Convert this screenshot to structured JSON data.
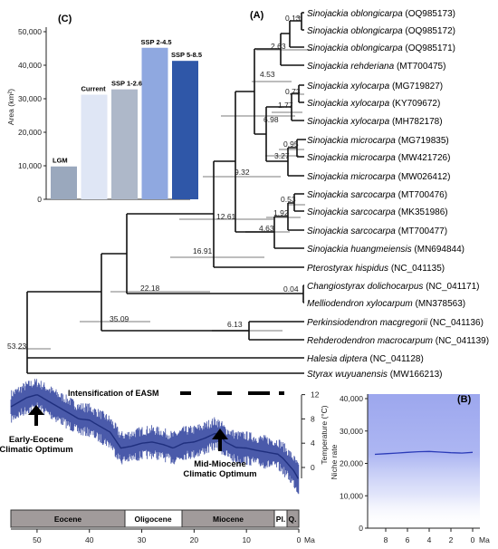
{
  "panel_a": {
    "label": "(A)",
    "tips": [
      {
        "species": "Sinojackia oblongicarpa",
        "accession": "(OQ985173)"
      },
      {
        "species": "Sinojackia oblongicarpa",
        "accession": "(OQ985172)"
      },
      {
        "species": "Sinojackia oblongicarpa",
        "accession": "(OQ985171)"
      },
      {
        "species": "Sinojackia rehderiana",
        "accession": "(MT700475)"
      },
      {
        "species": "Sinojackia xylocarpa",
        "accession": "(MG719827)"
      },
      {
        "species": "Sinojackia xylocarpa",
        "accession": "(KY709672)"
      },
      {
        "species": "Sinojackia xylocarpa",
        "accession": "(MH782178)"
      },
      {
        "species": "Sinojackia microcarpa",
        "accession": "(MG719835)"
      },
      {
        "species": "Sinojackia microcarpa",
        "accession": "(MW421726)"
      },
      {
        "species": "Sinojackia microcarpa",
        "accession": "(MW026412)"
      },
      {
        "species": "Sinojackia sarcocarpa",
        "accession": "(MT700476)"
      },
      {
        "species": "Sinojackia sarcocarpa",
        "accession": "(MK351986)"
      },
      {
        "species": "Sinojackia sarcocarpa",
        "accession": "(MT700477)"
      },
      {
        "species": "Sinojackia huangmeiensis",
        "accession": "(MN694844)"
      },
      {
        "species": "Pterostyrax hispidus",
        "accession": "(NC_041135)"
      },
      {
        "species": "Changiostyrax dolichocarpus",
        "accession": "(NC_041171)"
      },
      {
        "species": "Melliodendron xylocarpum",
        "accession": "(MN378563)"
      },
      {
        "species": "Perkinsiodendron macgregorii",
        "accession": "(NC_041136)"
      },
      {
        "species": "Rehderodendron macrocarpum",
        "accession": "(NC_041139)"
      },
      {
        "species": "Halesia diptera",
        "accession": "(NC_041128)"
      },
      {
        "species": "Styrax wuyuanensis",
        "accession": "(MW166213)"
      }
    ],
    "node_ages": [
      "0.13",
      "2.63",
      "4.53",
      "0.73",
      "1.77",
      "6.98",
      "0.95",
      "3.27",
      "9.32",
      "0.53",
      "1.92",
      "4.63",
      "12.61",
      "16.91",
      "22.18",
      "0.04",
      "6.13",
      "35.09",
      "53.23"
    ]
  },
  "panel_c": {
    "label": "(C)",
    "ylabel": "Area (km²)",
    "chart_data": {
      "type": "bar",
      "categories": [
        "LGM",
        "Current",
        "SSP 1-2.6",
        "SSP 2-4.5",
        "SSP 5-8.5"
      ],
      "values": [
        9800,
        31200,
        32800,
        45200,
        41300
      ],
      "ylim": [
        0,
        50000
      ],
      "yticks": [
        "0",
        "10,000",
        "20,000",
        "30,000",
        "40,000",
        "50,000"
      ],
      "colors": [
        "#9aa8bd",
        "#dfe6f5",
        "#aeb8c9",
        "#8fa8e0",
        "#2f57a8"
      ]
    }
  },
  "panel_b": {
    "label": "(B)",
    "ylabel": "Niche rate",
    "chart_data": {
      "type": "area",
      "x": [
        9,
        8,
        7,
        6,
        5,
        4,
        3,
        2,
        1,
        0
      ],
      "y": [
        22800,
        23000,
        23200,
        23400,
        23600,
        23700,
        23500,
        23300,
        23200,
        23400
      ],
      "ylim": [
        0,
        40000
      ],
      "yticks": [
        "0",
        "10,000",
        "20,000",
        "30,000",
        "40,000"
      ],
      "xticks": [
        "8",
        "6",
        "4",
        "2",
        "0"
      ],
      "x_unit": "Ma"
    }
  },
  "climate": {
    "ylabel": "Temperature (°C)",
    "yticks": [
      "0",
      "4",
      "8",
      "12"
    ],
    "easm_label": "Intensification of EASM",
    "early_eocene": [
      "Early-Eocene",
      "Climatic Optimum"
    ],
    "mid_miocene": [
      "Mid-Miocene",
      "Climatic Optimum"
    ],
    "xticks": [
      "50",
      "40",
      "30",
      "20",
      "10",
      "0"
    ],
    "x_unit": "Ma",
    "epochs": [
      "Eocene",
      "Oligocene",
      "Miocene",
      "Pl.",
      "Q."
    ]
  }
}
